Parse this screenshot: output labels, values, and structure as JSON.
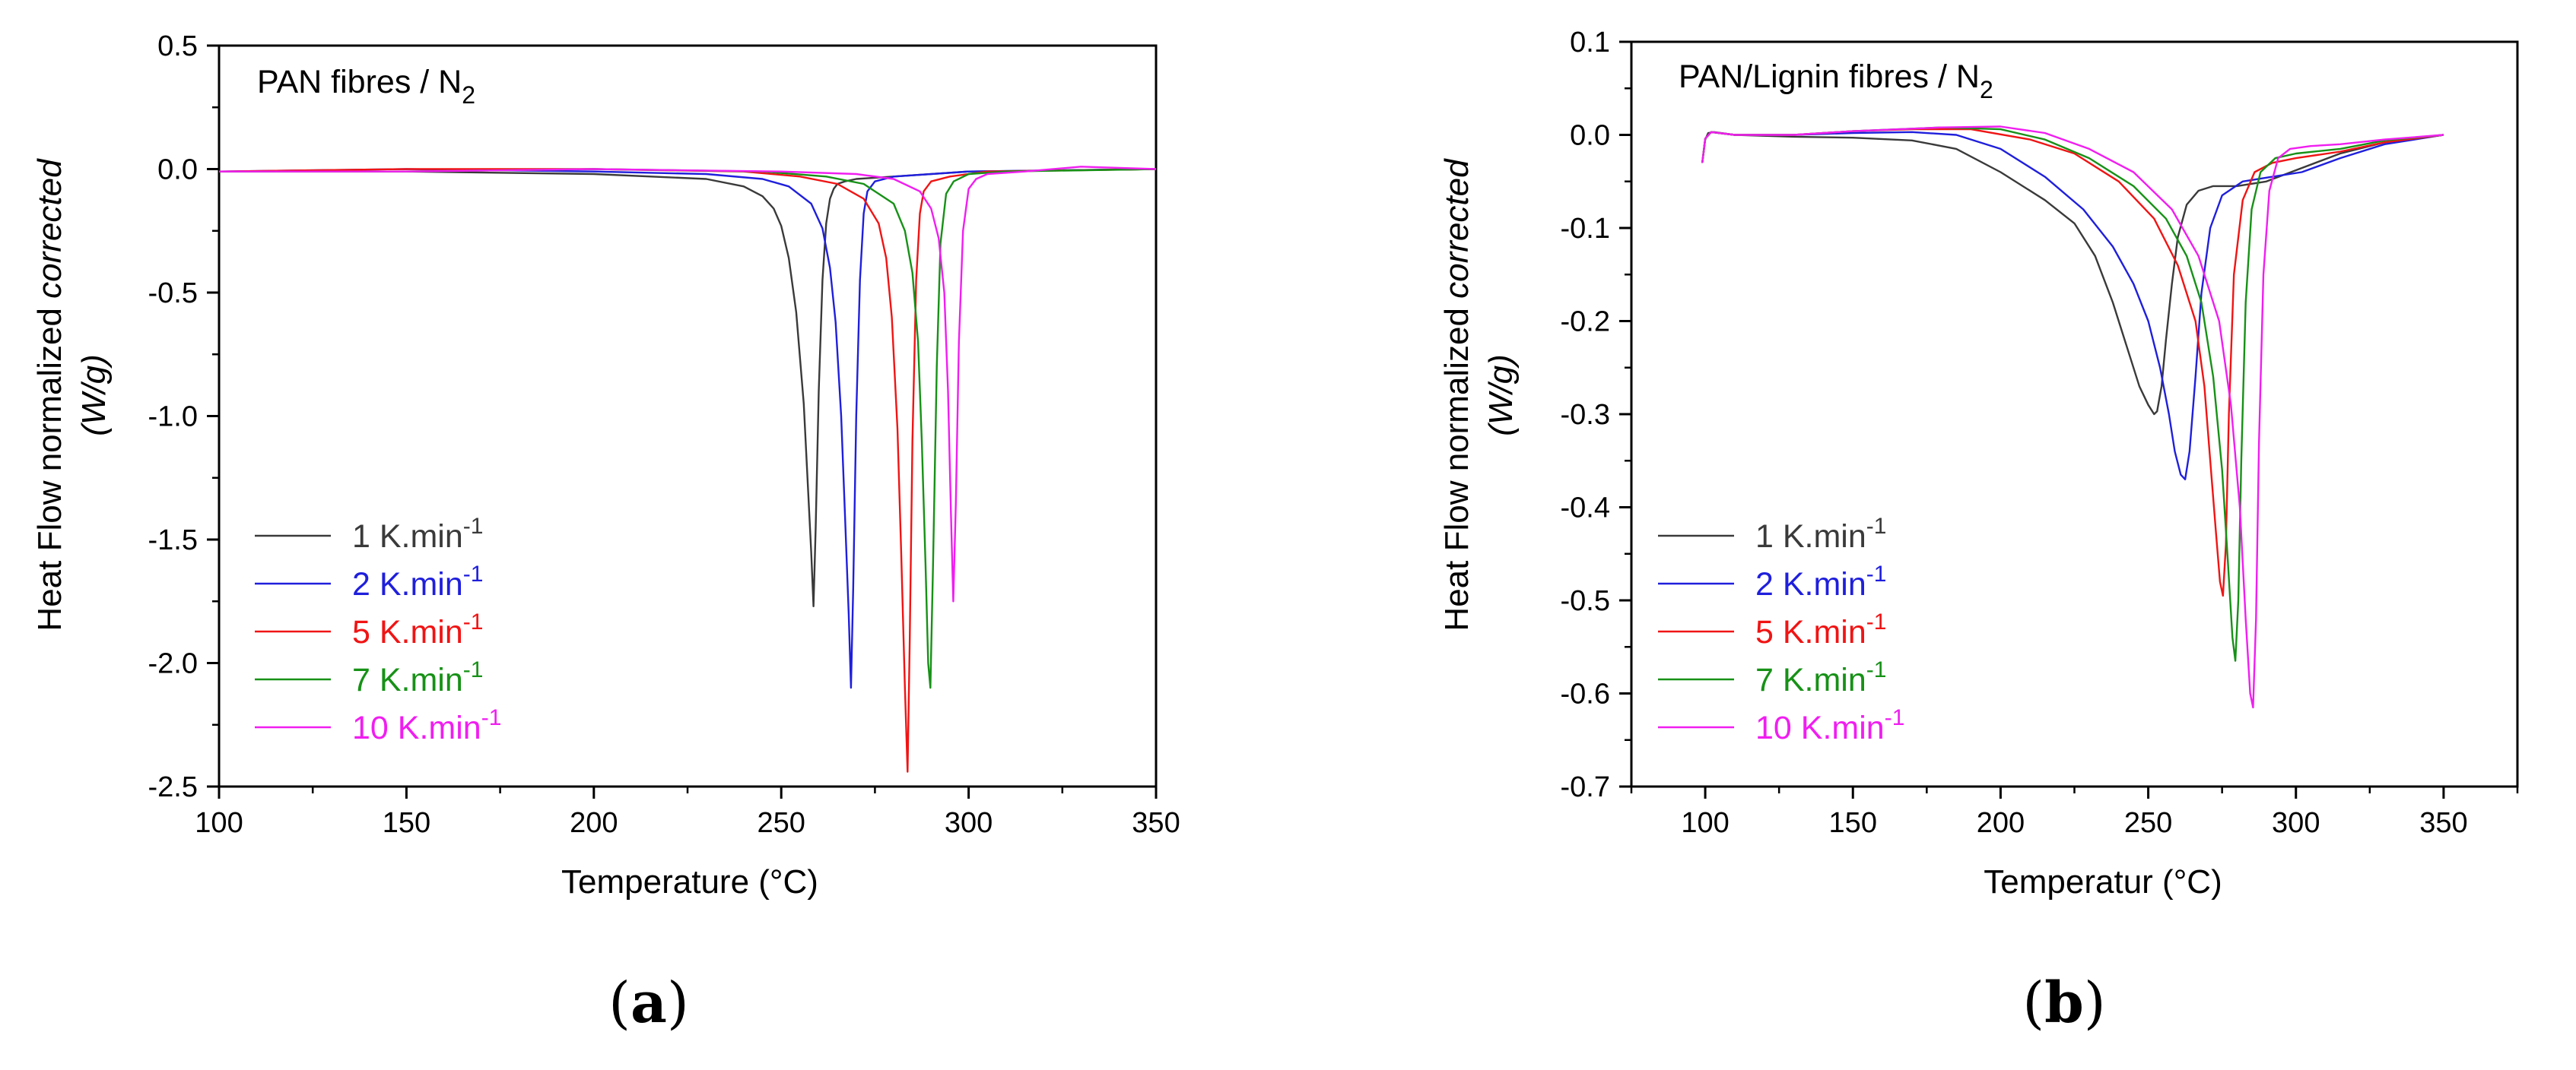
{
  "chart_data": [
    {
      "type": "line",
      "panel_label": "a",
      "title_prefix": "PAN fibres / N",
      "title_subscript": "2",
      "ylabel_line1_prefix": "Heat Flow normalized ",
      "ylabel_line1_italic": "corrected",
      "ylabel_line2": "(W/g)",
      "xlabel": "Temperature (°C)",
      "xlim": [
        100,
        350
      ],
      "ylim": [
        -2.5,
        0.5
      ],
      "xticks": [
        100,
        150,
        200,
        250,
        300,
        350
      ],
      "xtick_labels": [
        "100",
        "150",
        "200",
        "250",
        "300",
        "350"
      ],
      "yticks": [
        -2.5,
        -2.0,
        -1.5,
        -1.0,
        -0.5,
        0.0,
        0.5
      ],
      "ytick_labels": [
        "-2.5",
        "-2.0",
        "-1.5",
        "-1.0",
        "-0.5",
        "0.0",
        "0.5"
      ],
      "legend_location": "lower-left",
      "series": [
        {
          "name": "1 K.min",
          "superscript": "-1",
          "color": "#3a3a3a",
          "x": [
            100,
            150,
            200,
            230,
            240,
            245,
            248,
            250,
            252,
            254,
            256,
            257,
            258,
            258.6,
            259.2,
            260,
            261,
            262,
            263,
            264,
            265,
            267,
            270,
            280,
            300,
            350
          ],
          "y": [
            -0.01,
            -0.01,
            -0.02,
            -0.04,
            -0.07,
            -0.11,
            -0.16,
            -0.23,
            -0.36,
            -0.58,
            -0.95,
            -1.25,
            -1.55,
            -1.77,
            -1.45,
            -0.9,
            -0.45,
            -0.22,
            -0.12,
            -0.08,
            -0.06,
            -0.05,
            -0.04,
            -0.03,
            -0.01,
            0.0
          ]
        },
        {
          "name": "2 K.min",
          "superscript": "-1",
          "color": "#1f1fdc",
          "x": [
            100,
            150,
            200,
            230,
            245,
            252,
            258,
            261,
            263,
            264.5,
            266,
            267,
            268,
            268.6,
            269.2,
            270,
            271,
            272,
            273,
            275,
            280,
            300,
            350
          ],
          "y": [
            -0.01,
            0.0,
            -0.01,
            -0.02,
            -0.04,
            -0.07,
            -0.14,
            -0.24,
            -0.4,
            -0.62,
            -1.0,
            -1.4,
            -1.8,
            -2.1,
            -1.7,
            -1.0,
            -0.45,
            -0.18,
            -0.09,
            -0.05,
            -0.03,
            -0.01,
            0.0
          ]
        },
        {
          "name": "5 K.min",
          "superscript": "-1",
          "color": "#f01414",
          "x": [
            100,
            150,
            200,
            240,
            255,
            265,
            272,
            276,
            278,
            279.5,
            281,
            282,
            283,
            283.7,
            284.3,
            285,
            286,
            287,
            288,
            290,
            295,
            305,
            350
          ],
          "y": [
            -0.01,
            0.0,
            0.0,
            -0.01,
            -0.03,
            -0.06,
            -0.12,
            -0.22,
            -0.36,
            -0.6,
            -1.05,
            -1.55,
            -2.1,
            -2.44,
            -1.9,
            -1.1,
            -0.45,
            -0.18,
            -0.09,
            -0.05,
            -0.03,
            -0.01,
            0.0
          ]
        },
        {
          "name": "7 K.min",
          "superscript": "-1",
          "color": "#179117",
          "x": [
            100,
            150,
            200,
            245,
            262,
            272,
            280,
            283,
            285,
            286.5,
            287.5,
            288.5,
            289.2,
            289.8,
            290.5,
            291.5,
            292.5,
            294,
            296,
            300,
            310,
            350
          ],
          "y": [
            -0.01,
            -0.01,
            0.0,
            -0.01,
            -0.03,
            -0.06,
            -0.14,
            -0.25,
            -0.42,
            -0.7,
            -1.1,
            -1.6,
            -2.0,
            -2.1,
            -1.6,
            -0.8,
            -0.3,
            -0.1,
            -0.05,
            -0.02,
            -0.01,
            0.0
          ]
        },
        {
          "name": "10 K.min",
          "superscript": "-1",
          "color": "#f01ef0",
          "x": [
            100,
            150,
            200,
            250,
            270,
            280,
            287,
            290,
            292,
            293.5,
            294.5,
            295.3,
            295.9,
            296.6,
            297.4,
            298.5,
            300,
            302,
            305,
            315,
            330,
            350
          ],
          "y": [
            -0.01,
            -0.01,
            0.0,
            -0.01,
            -0.02,
            -0.04,
            -0.09,
            -0.16,
            -0.28,
            -0.5,
            -0.9,
            -1.4,
            -1.75,
            -1.35,
            -0.7,
            -0.25,
            -0.08,
            -0.04,
            -0.02,
            -0.01,
            0.01,
            0.0
          ]
        }
      ]
    },
    {
      "type": "line",
      "panel_label": "b",
      "title_prefix": "PAN/Lignin fibres / N",
      "title_subscript": "2",
      "ylabel_line1_prefix": "Heat Flow normalized ",
      "ylabel_line1_italic": "corrected",
      "ylabel_line2": "(W/g)",
      "xlabel": "Temperatur (°C)",
      "xlim": [
        75,
        375
      ],
      "ylim": [
        -0.7,
        0.1
      ],
      "xticks": [
        100,
        150,
        200,
        250,
        300,
        350
      ],
      "xtick_labels": [
        "100",
        "150",
        "200",
        "250",
        "300",
        "350"
      ],
      "yticks": [
        -0.7,
        -0.6,
        -0.5,
        -0.4,
        -0.3,
        -0.2,
        -0.1,
        0.0,
        0.1
      ],
      "ytick_labels": [
        "-0.7",
        "-0.6",
        "-0.5",
        "-0.4",
        "-0.3",
        "-0.2",
        "-0.1",
        "0.0",
        "0.1"
      ],
      "legend_location": "lower-left",
      "series": [
        {
          "name": "1 K.min",
          "superscript": "-1",
          "color": "#3a3a3a",
          "x": [
            99,
            100,
            101,
            103,
            110,
            130,
            150,
            170,
            185,
            200,
            215,
            225,
            232,
            238,
            243,
            247,
            250,
            252,
            253,
            254.5,
            256,
            258,
            260,
            263,
            267,
            272,
            280,
            290,
            300,
            315,
            330,
            350
          ],
          "y": [
            -0.03,
            -0.005,
            0.002,
            0.003,
            0.0,
            -0.002,
            -0.003,
            -0.006,
            -0.015,
            -0.04,
            -0.07,
            -0.095,
            -0.13,
            -0.18,
            -0.23,
            -0.27,
            -0.29,
            -0.3,
            -0.297,
            -0.27,
            -0.22,
            -0.16,
            -0.11,
            -0.075,
            -0.06,
            -0.055,
            -0.055,
            -0.05,
            -0.038,
            -0.02,
            -0.008,
            0.0
          ]
        },
        {
          "name": "2 K.min",
          "superscript": "-1",
          "color": "#1f1fdc",
          "x": [
            99,
            100,
            102,
            110,
            130,
            150,
            170,
            185,
            200,
            215,
            228,
            238,
            245,
            250,
            254,
            257,
            259,
            261,
            262.5,
            264,
            266,
            268,
            271,
            275,
            282,
            292,
            302,
            315,
            330,
            350
          ],
          "y": [
            -0.03,
            -0.004,
            0.003,
            0.0,
            0.0,
            0.002,
            0.003,
            0.0,
            -0.015,
            -0.045,
            -0.08,
            -0.12,
            -0.16,
            -0.2,
            -0.25,
            -0.3,
            -0.34,
            -0.365,
            -0.37,
            -0.34,
            -0.26,
            -0.17,
            -0.1,
            -0.065,
            -0.05,
            -0.045,
            -0.04,
            -0.025,
            -0.01,
            0.0
          ]
        },
        {
          "name": "5 K.min",
          "superscript": "-1",
          "color": "#f01414",
          "x": [
            99,
            100,
            102,
            110,
            130,
            150,
            170,
            190,
            210,
            225,
            240,
            252,
            260,
            266,
            269,
            271,
            273,
            274.3,
            275.3,
            276.3,
            277.3,
            279,
            282,
            286,
            292,
            300,
            315,
            330,
            350
          ],
          "y": [
            -0.03,
            -0.004,
            0.003,
            0.0,
            0.0,
            0.004,
            0.006,
            0.006,
            -0.005,
            -0.02,
            -0.05,
            -0.09,
            -0.14,
            -0.2,
            -0.27,
            -0.35,
            -0.43,
            -0.48,
            -0.495,
            -0.44,
            -0.3,
            -0.15,
            -0.07,
            -0.04,
            -0.03,
            -0.025,
            -0.018,
            -0.008,
            0.0
          ]
        },
        {
          "name": "7 K.min",
          "superscript": "-1",
          "color": "#179117",
          "x": [
            99,
            100,
            102,
            110,
            130,
            150,
            180,
            200,
            215,
            230,
            245,
            256,
            263,
            268,
            272,
            275,
            277,
            278.5,
            279.5,
            280.5,
            281.5,
            283,
            285,
            288,
            293,
            300,
            315,
            330,
            350
          ],
          "y": [
            -0.03,
            -0.004,
            0.003,
            0.0,
            0.0,
            0.004,
            0.008,
            0.006,
            -0.005,
            -0.025,
            -0.055,
            -0.09,
            -0.13,
            -0.18,
            -0.26,
            -0.36,
            -0.46,
            -0.54,
            -0.565,
            -0.5,
            -0.35,
            -0.18,
            -0.08,
            -0.04,
            -0.025,
            -0.02,
            -0.015,
            -0.006,
            0.0
          ]
        },
        {
          "name": "10 K.min",
          "superscript": "-1",
          "color": "#f01ef0",
          "x": [
            99,
            100,
            102,
            110,
            130,
            150,
            180,
            200,
            215,
            230,
            245,
            258,
            267,
            274,
            278,
            281,
            283,
            284.5,
            285.5,
            286.5,
            287.5,
            289,
            291,
            294,
            298,
            305,
            315,
            330,
            350
          ],
          "y": [
            -0.03,
            -0.004,
            0.003,
            0.0,
            0.0,
            0.004,
            0.008,
            0.009,
            0.002,
            -0.015,
            -0.04,
            -0.08,
            -0.13,
            -0.2,
            -0.29,
            -0.4,
            -0.52,
            -0.6,
            -0.615,
            -0.52,
            -0.33,
            -0.15,
            -0.06,
            -0.025,
            -0.015,
            -0.012,
            -0.01,
            -0.005,
            0.0
          ]
        }
      ]
    }
  ]
}
